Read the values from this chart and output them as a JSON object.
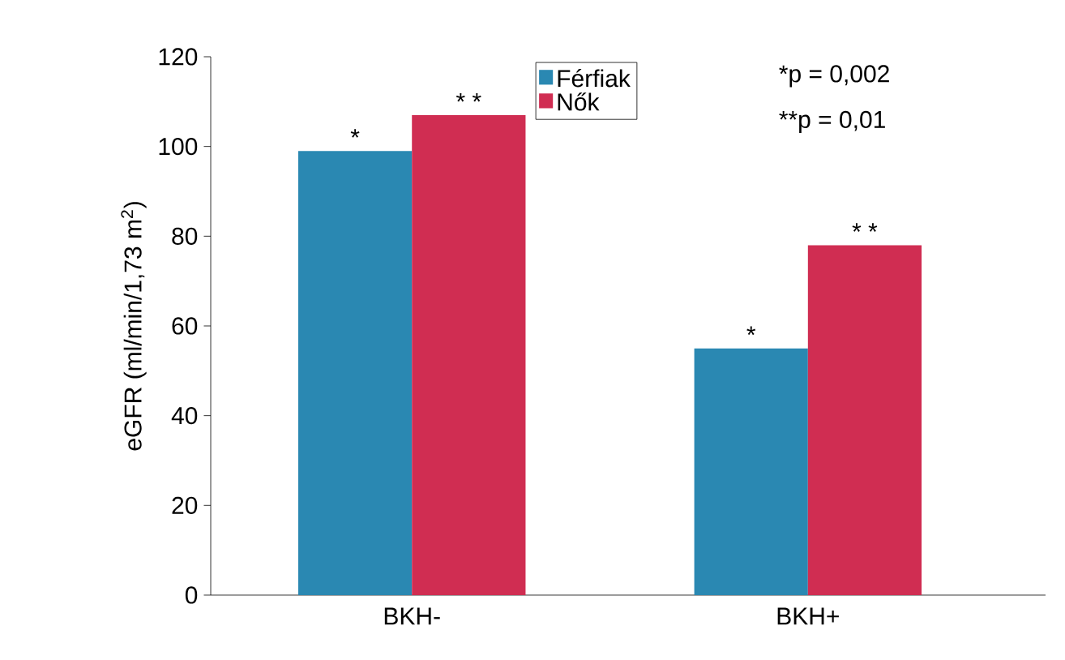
{
  "chart_data": {
    "type": "bar",
    "ylabel": "eGFR (ml/min/1,73 m$^{2}$)",
    "categories": [
      "BKH-",
      "BKH+"
    ],
    "series": [
      {
        "name": "Férfiak",
        "color": "#2a88b2",
        "values": [
          99,
          55
        ]
      },
      {
        "name": "Nők",
        "color": "#d02d52",
        "values": [
          107,
          78
        ]
      }
    ],
    "ylim": [
      0,
      120
    ],
    "yticks": [
      0,
      20,
      40,
      60,
      80,
      100,
      120
    ],
    "legend": "top",
    "annotations": [
      {
        "text": "*",
        "x": "BKH-",
        "y": 99
      },
      {
        "text": "* *",
        "x": "BKH-",
        "y": 107
      },
      {
        "text": "*",
        "x": "BKH+",
        "y": 55
      },
      {
        "text": "* *",
        "x": "BKH+",
        "y": 78
      },
      "*p = 0,002",
      "**p = 0,01"
    ]
  }
}
